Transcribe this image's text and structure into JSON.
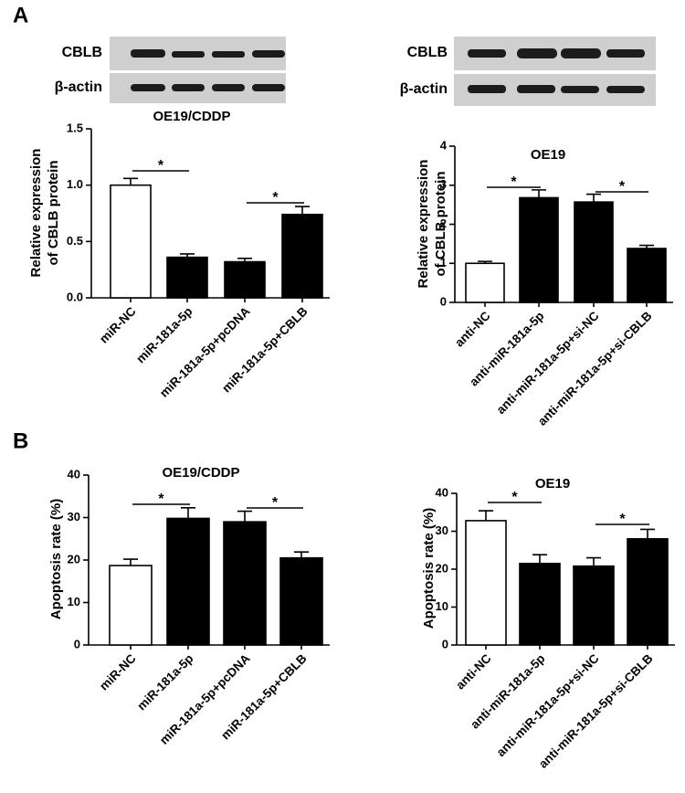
{
  "panels": [
    "A",
    "B"
  ],
  "blots": [
    {
      "labels": [
        "CBLB",
        "β-actin"
      ]
    },
    {
      "labels": [
        "CBLB",
        "β-actin"
      ]
    }
  ],
  "chart_data": [
    {
      "type": "bar",
      "title": "OE19/CDDP",
      "ylabel": [
        "Relative expression",
        "of CBLB protein"
      ],
      "categories": [
        "miR-NC",
        "miR-181a-5p",
        "miR-181a-5p+pcDNA",
        "miR-181a-5p+CBLB"
      ],
      "values": [
        1.0,
        0.36,
        0.32,
        0.74
      ],
      "errors": [
        0.06,
        0.03,
        0.03,
        0.07
      ],
      "colors": [
        "#ffffff",
        "#000000",
        "#000000",
        "#000000"
      ],
      "ylim": [
        0,
        1.5
      ],
      "yticks": [
        {
          "value": 0,
          "label": "0.0"
        },
        {
          "value": 0.5,
          "label": "0.5"
        },
        {
          "value": 1,
          "label": "1.0"
        },
        {
          "value": 1.5,
          "label": "1.5"
        }
      ],
      "annotations": [
        "*",
        "*"
      ]
    },
    {
      "type": "bar",
      "title": "OE19",
      "ylabel": [
        "Relative expression",
        "of CBLB protein"
      ],
      "categories": [
        "anti-NC",
        "anti-miR-181a-5p",
        "anti-miR-181a-5p+si-NC",
        "anti-miR-181a-5p+si-CBLB"
      ],
      "values": [
        1.0,
        2.68,
        2.57,
        1.38
      ],
      "errors": [
        0.05,
        0.2,
        0.2,
        0.08
      ],
      "colors": [
        "#ffffff",
        "#000000",
        "#000000",
        "#000000"
      ],
      "ylim": [
        0,
        4
      ],
      "yticks": [
        0,
        1,
        2,
        3,
        4
      ],
      "annotations": [
        "*",
        "*"
      ]
    },
    {
      "type": "bar",
      "title": "OE19/CDDP",
      "ylabel": [
        "Apoptosis rate (%)"
      ],
      "categories": [
        "miR-NC",
        "miR-181a-5p",
        "miR-181a-5p+pcDNA",
        "miR-181a-5p+CBLB"
      ],
      "values": [
        18.7,
        29.8,
        29.0,
        20.5
      ],
      "errors": [
        1.5,
        2.5,
        2.5,
        1.4
      ],
      "colors": [
        "#ffffff",
        "#000000",
        "#000000",
        "#000000"
      ],
      "ylim": [
        0,
        40
      ],
      "yticks": [
        0,
        10,
        20,
        30,
        40
      ],
      "annotations": [
        "*",
        "*"
      ]
    },
    {
      "type": "bar",
      "title": "OE19",
      "ylabel": [
        "Apoptosis rate (%)"
      ],
      "categories": [
        "anti-NC",
        "anti-miR-181a-5p",
        "anti-miR-181a-5p+si-NC",
        "anti-miR-181a-5p+si-CBLB"
      ],
      "values": [
        32.8,
        21.5,
        20.8,
        28.0
      ],
      "errors": [
        2.6,
        2.3,
        2.2,
        2.5
      ],
      "colors": [
        "#ffffff",
        "#000000",
        "#000000",
        "#000000"
      ],
      "ylim": [
        0,
        40
      ],
      "yticks": [
        0,
        10,
        20,
        30,
        40
      ],
      "annotations": [
        "*",
        "*"
      ]
    }
  ]
}
